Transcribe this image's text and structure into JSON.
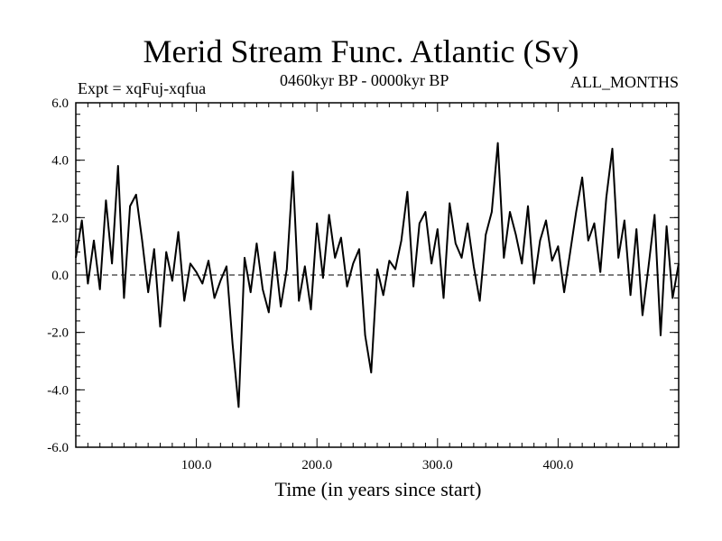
{
  "header": {
    "title": "Merid Stream Func. Atlantic (Sv)",
    "left": "Expt = xqFuj-xqfua",
    "center": "0460kyr BP - 0000kyr BP",
    "right": "ALL_MONTHS"
  },
  "chart_data": {
    "type": "line",
    "title": "Merid Stream Func. Atlantic (Sv)",
    "xlabel": "Time (in years since start)",
    "ylabel": "",
    "xlim": [
      0,
      500
    ],
    "ylim": [
      -6.0,
      6.0
    ],
    "xticks": [
      100,
      200,
      300,
      400
    ],
    "xtick_labels": [
      "100.0",
      "200.0",
      "300.0",
      "400.0"
    ],
    "yticks": [
      -6,
      -4,
      -2,
      0,
      2,
      4,
      6
    ],
    "ytick_labels": [
      "-6.0",
      "-4.0",
      "-2.0",
      "0.0",
      "2.0",
      "4.0",
      "6.0"
    ],
    "reference_line": {
      "y": 0,
      "style": "dashed"
    },
    "series": [
      {
        "name": "Merid Stream Func. Atlantic",
        "x": [
          0,
          5,
          10,
          15,
          20,
          25,
          30,
          35,
          40,
          45,
          50,
          55,
          60,
          65,
          70,
          75,
          80,
          85,
          90,
          95,
          100,
          105,
          110,
          115,
          120,
          125,
          130,
          135,
          140,
          145,
          150,
          155,
          160,
          165,
          170,
          175,
          180,
          185,
          190,
          195,
          200,
          205,
          210,
          215,
          220,
          225,
          230,
          235,
          240,
          245,
          250,
          255,
          260,
          265,
          270,
          275,
          280,
          285,
          290,
          295,
          300,
          305,
          310,
          315,
          320,
          325,
          330,
          335,
          340,
          345,
          350,
          355,
          360,
          365,
          370,
          375,
          380,
          385,
          390,
          395,
          400,
          405,
          410,
          415,
          420,
          425,
          430,
          435,
          440,
          445,
          450,
          455,
          460,
          465,
          470,
          475,
          480,
          485,
          490,
          495,
          500
        ],
        "y": [
          0.6,
          1.9,
          -0.3,
          1.2,
          -0.5,
          2.6,
          0.4,
          3.8,
          -0.8,
          2.4,
          2.8,
          1.2,
          -0.6,
          0.9,
          -1.8,
          0.8,
          -0.2,
          1.5,
          -0.9,
          0.4,
          0.1,
          -0.3,
          0.5,
          -0.8,
          -0.2,
          0.3,
          -2.4,
          -4.6,
          0.6,
          -0.6,
          1.1,
          -0.5,
          -1.3,
          0.8,
          -1.1,
          0.2,
          3.6,
          -0.9,
          0.3,
          -1.2,
          1.8,
          -0.1,
          2.1,
          0.6,
          1.3,
          -0.4,
          0.4,
          0.9,
          -2.1,
          -3.4,
          0.2,
          -0.7,
          0.5,
          0.2,
          1.2,
          2.9,
          -0.4,
          1.8,
          2.2,
          0.4,
          1.6,
          -0.8,
          2.5,
          1.1,
          0.6,
          1.8,
          0.3,
          -0.9,
          1.4,
          2.2,
          4.6,
          0.6,
          2.2,
          1.4,
          0.4,
          2.4,
          -0.3,
          1.2,
          1.9,
          0.5,
          1.0,
          -0.6,
          0.8,
          2.2,
          3.4,
          1.2,
          1.8,
          0.1,
          2.7,
          4.4,
          0.6,
          1.9,
          -0.7,
          1.6,
          -1.4,
          0.3,
          2.1,
          -2.1,
          1.7,
          -0.8,
          0.4
        ]
      }
    ]
  }
}
